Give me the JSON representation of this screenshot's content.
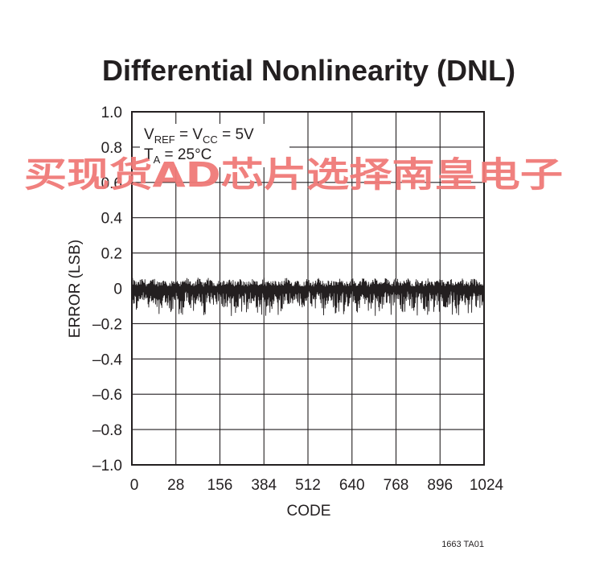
{
  "chart_data": {
    "type": "line",
    "title": "Differential Nonlinearity (DNL)",
    "xlabel": "CODE",
    "ylabel": "ERROR (LSB)",
    "x_tick_labels": [
      "0",
      "28",
      "156",
      "384",
      "512",
      "640",
      "768",
      "896",
      "1024"
    ],
    "y_ticks": [
      1.0,
      0.8,
      0.6,
      0.4,
      0.2,
      0,
      -0.2,
      -0.4,
      -0.6,
      -0.8,
      -1.0
    ],
    "y_tick_labels": [
      "1.0",
      "0.8",
      "0.6",
      "0.4",
      "0.2",
      "0",
      "–0.2",
      "–0.4",
      "–0.6",
      "–0.8",
      "–1.0"
    ],
    "xlim": [
      0,
      1024
    ],
    "ylim": [
      -1.0,
      1.0
    ],
    "grid": true,
    "conditions": {
      "line1": {
        "v": "V",
        "ref_sub": "REF",
        "eq1": " = V",
        "cc_sub": "CC",
        "eq2": " = 5V"
      },
      "line2": {
        "t": "T",
        "a_sub": "A",
        "eq": " = 25°C"
      }
    },
    "series": [
      {
        "x_range": [
          0,
          1024
        ],
        "points": 1024,
        "y_upper_approx": 0.06,
        "y_lower_approx": -0.15,
        "period_codes": 32
      }
    ],
    "part_number": "1663 TA01"
  },
  "watermark": {
    "text": "买现货AD芯片选择南皇电子",
    "color": "#f07a78"
  }
}
